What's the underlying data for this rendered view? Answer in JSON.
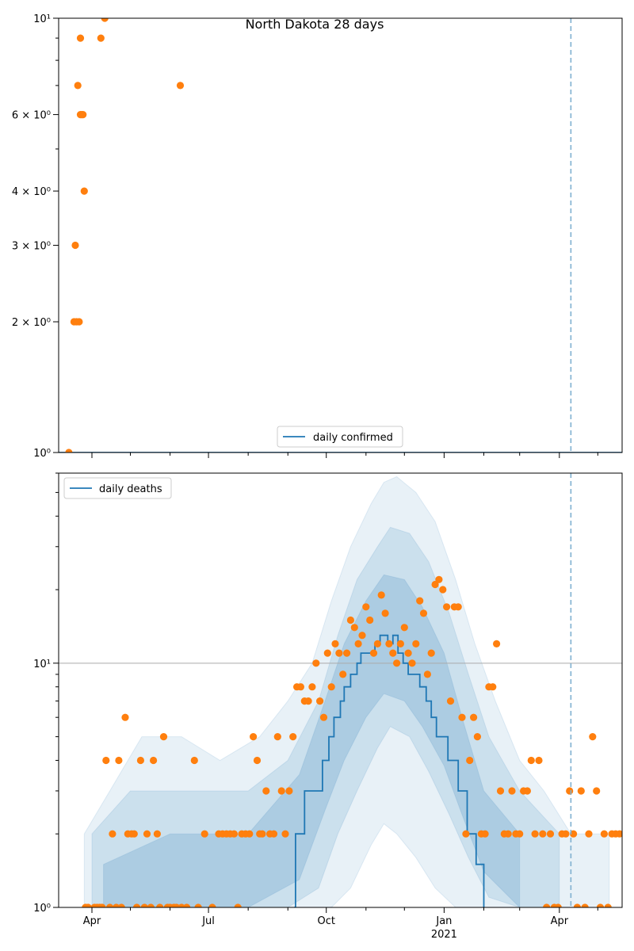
{
  "chart_data": [
    {
      "type": "scatter",
      "title": "North Dakota 28 days",
      "yscale": "log",
      "ylim": [
        1,
        10
      ],
      "xlim": [
        "2020-03-06",
        "2021-05-20"
      ],
      "y_ticks": [
        {
          "value": 1,
          "label": "10^0"
        },
        {
          "value": 2,
          "label": "2×10^0"
        },
        {
          "value": 3,
          "label": "3×10^0"
        },
        {
          "value": 4,
          "label": "4×10^0"
        },
        {
          "value": 6,
          "label": "6×10^0"
        },
        {
          "value": 10,
          "label": "10^1"
        }
      ],
      "y_tick_labels": {
        "1": "10⁰",
        "2": "2 × 10⁰",
        "3": "3 × 10⁰",
        "4": "4 × 10⁰",
        "6": "6 × 10⁰",
        "10": "10¹"
      },
      "legend": {
        "position": "bottom-center",
        "entries": [
          "daily confirmed"
        ]
      },
      "vline_date": "2021-04-10",
      "series": [
        {
          "name": "daily confirmed",
          "kind": "line",
          "color": "#1f77b4",
          "x": [
            "2020-03-06",
            "2021-05-20"
          ],
          "y": [
            1,
            1
          ]
        },
        {
          "kind": "points",
          "color": "#ff7f0e",
          "x": [
            "2020-03-14",
            "2020-03-18",
            "2020-03-19",
            "2020-03-20",
            "2020-03-21",
            "2020-03-22",
            "2020-03-23",
            "2020-03-23",
            "2020-03-24",
            "2020-03-25",
            "2020-03-26",
            "2020-04-08",
            "2020-04-11",
            "2020-06-09"
          ],
          "y": [
            1,
            2,
            3,
            2,
            7,
            2,
            6,
            9,
            6,
            6,
            4,
            9,
            10,
            7
          ]
        }
      ]
    },
    {
      "type": "scatter",
      "yscale": "log",
      "ylim": [
        1,
        60
      ],
      "xlim": [
        "2020-03-06",
        "2021-05-20"
      ],
      "y_tick_labels": {
        "1": "10⁰",
        "10": "10¹"
      },
      "x_ticks": [
        {
          "date": "2020-04-01",
          "label": "Apr"
        },
        {
          "date": "2020-07-01",
          "label": "Jul"
        },
        {
          "date": "2020-10-01",
          "label": "Oct"
        },
        {
          "date": "2021-01-01",
          "label": "Jan",
          "sub": "2021"
        },
        {
          "date": "2021-04-01",
          "label": "Apr"
        }
      ],
      "hline_value": 10,
      "vline_date": "2021-04-10",
      "legend": {
        "position": "top-left",
        "entries": [
          "daily deaths"
        ]
      },
      "series": [
        {
          "name": "daily deaths",
          "kind": "step",
          "color": "#1f77b4",
          "x": [
            "2020-09-06",
            "2020-09-07",
            "2020-09-14",
            "2020-09-20",
            "2020-09-28",
            "2020-10-03",
            "2020-10-07",
            "2020-10-12",
            "2020-10-15",
            "2020-10-20",
            "2020-10-25",
            "2020-10-28",
            "2020-11-03",
            "2020-11-08",
            "2020-11-10",
            "2020-11-12",
            "2020-11-15",
            "2020-11-18",
            "2020-11-22",
            "2020-11-26",
            "2020-11-30",
            "2020-12-04",
            "2020-12-08",
            "2020-12-13",
            "2020-12-18",
            "2020-12-22",
            "2020-12-26",
            "2020-12-30",
            "2021-01-04",
            "2021-01-08",
            "2021-01-12",
            "2021-01-16",
            "2021-01-19",
            "2021-01-23",
            "2021-01-26",
            "2021-02-01"
          ],
          "y": [
            1,
            2,
            3,
            3,
            4,
            5,
            6,
            7,
            8,
            9,
            10,
            11,
            11,
            12,
            12,
            13,
            13,
            12,
            13,
            11,
            10,
            9,
            9,
            8,
            7,
            6,
            5,
            5,
            4,
            4,
            3,
            3,
            2,
            2,
            1.5,
            1
          ]
        },
        {
          "kind": "points",
          "color": "#ff7f0e",
          "x": [
            "2020-03-27",
            "2020-03-29",
            "2020-04-03",
            "2020-04-05",
            "2020-04-07",
            "2020-04-09",
            "2020-04-12",
            "2020-04-15",
            "2020-04-17",
            "2020-04-20",
            "2020-04-22",
            "2020-04-24",
            "2020-04-27",
            "2020-04-29",
            "2020-05-02",
            "2020-05-04",
            "2020-05-06",
            "2020-05-09",
            "2020-05-12",
            "2020-05-14",
            "2020-05-17",
            "2020-05-19",
            "2020-05-22",
            "2020-05-24",
            "2020-05-27",
            "2020-05-30",
            "2020-06-01",
            "2020-06-04",
            "2020-06-06",
            "2020-06-10",
            "2020-06-14",
            "2020-06-20",
            "2020-06-23",
            "2020-06-28",
            "2020-07-04",
            "2020-07-09",
            "2020-07-12",
            "2020-07-15",
            "2020-07-18",
            "2020-07-21",
            "2020-07-24",
            "2020-07-27",
            "2020-07-30",
            "2020-08-02",
            "2020-08-05",
            "2020-08-08",
            "2020-08-10",
            "2020-08-12",
            "2020-08-15",
            "2020-08-18",
            "2020-08-21",
            "2020-08-24",
            "2020-08-27",
            "2020-08-30",
            "2020-09-02",
            "2020-09-05",
            "2020-09-08",
            "2020-09-11",
            "2020-09-14",
            "2020-09-17",
            "2020-09-20",
            "2020-09-23",
            "2020-09-26",
            "2020-09-29",
            "2020-10-02",
            "2020-10-05",
            "2020-10-08",
            "2020-10-11",
            "2020-10-14",
            "2020-10-17",
            "2020-10-20",
            "2020-10-23",
            "2020-10-26",
            "2020-10-29",
            "2020-11-01",
            "2020-11-04",
            "2020-11-07",
            "2020-11-10",
            "2020-11-13",
            "2020-11-16",
            "2020-11-19",
            "2020-11-22",
            "2020-11-25",
            "2020-11-28",
            "2020-12-01",
            "2020-12-04",
            "2020-12-07",
            "2020-12-10",
            "2020-12-13",
            "2020-12-16",
            "2020-12-19",
            "2020-12-22",
            "2020-12-25",
            "2020-12-28",
            "2020-12-31",
            "2021-01-03",
            "2021-01-06",
            "2021-01-09",
            "2021-01-12",
            "2021-01-15",
            "2021-01-18",
            "2021-01-21",
            "2021-01-24",
            "2021-01-27",
            "2021-01-30",
            "2021-02-02",
            "2021-02-05",
            "2021-02-08",
            "2021-02-11",
            "2021-02-14",
            "2021-02-17",
            "2021-02-20",
            "2021-02-23",
            "2021-02-26",
            "2021-03-01",
            "2021-03-04",
            "2021-03-07",
            "2021-03-10",
            "2021-03-13",
            "2021-03-16",
            "2021-03-19",
            "2021-03-22",
            "2021-03-25",
            "2021-03-28",
            "2021-03-31",
            "2021-04-03",
            "2021-04-06",
            "2021-04-09",
            "2021-04-12",
            "2021-04-15",
            "2021-04-18",
            "2021-04-21",
            "2021-04-24",
            "2021-04-27",
            "2021-04-30",
            "2021-05-03",
            "2021-05-06",
            "2021-05-09",
            "2021-05-12",
            "2021-05-15",
            "2021-05-18"
          ],
          "y": [
            1,
            1,
            1,
            1,
            1,
            1,
            4,
            1,
            2,
            1,
            4,
            1,
            6,
            2,
            2,
            2,
            1,
            4,
            1,
            2,
            1,
            4,
            2,
            1,
            5,
            1,
            1,
            1,
            1,
            1,
            1,
            4,
            1,
            2,
            1,
            2,
            2,
            2,
            2,
            2,
            1,
            2,
            2,
            2,
            5,
            4,
            2,
            2,
            3,
            2,
            2,
            5,
            3,
            2,
            3,
            5,
            8,
            8,
            7,
            7,
            8,
            10,
            7,
            6,
            11,
            8,
            12,
            11,
            9,
            11,
            15,
            14,
            12,
            13,
            17,
            15,
            11,
            12,
            19,
            16,
            12,
            11,
            10,
            12,
            14,
            11,
            10,
            12,
            18,
            16,
            9,
            11,
            21,
            22,
            20,
            17,
            7,
            17,
            17,
            6,
            2,
            4,
            6,
            5,
            2,
            2,
            8,
            8,
            12,
            3,
            2,
            2,
            3,
            2,
            2,
            3,
            3,
            4,
            2,
            4,
            2,
            1,
            2,
            1,
            1,
            2,
            2,
            3,
            2,
            1,
            3,
            1,
            2,
            5,
            3,
            1,
            2,
            1,
            2,
            2,
            2
          ]
        },
        {
          "kind": "band",
          "color": "#1f77b4",
          "opacity": 0.1,
          "x": [
            "2020-03-26",
            "2020-04-15",
            "2020-05-10",
            "2020-06-10",
            "2020-07-10",
            "2020-08-10",
            "2020-09-01",
            "2020-09-20",
            "2020-10-05",
            "2020-10-20",
            "2020-11-05",
            "2020-11-15",
            "2020-11-25",
            "2020-12-10",
            "2020-12-25",
            "2021-01-10",
            "2021-01-25",
            "2021-02-10",
            "2021-03-01",
            "2021-03-20",
            "2021-04-10",
            "2021-05-10"
          ],
          "low": [
            1,
            1,
            1,
            1,
            1,
            1,
            1,
            1,
            1,
            1.2,
            1.8,
            2.2,
            2.0,
            1.6,
            1.2,
            1.0,
            1,
            1,
            1,
            1,
            1,
            1
          ],
          "high": [
            2,
            3,
            5,
            5,
            4,
            5,
            7,
            10,
            18,
            30,
            45,
            55,
            58,
            50,
            38,
            22,
            12,
            7,
            4,
            3,
            2,
            2
          ]
        },
        {
          "kind": "band",
          "color": "#1f77b4",
          "opacity": 0.14,
          "x": [
            "2020-04-01",
            "2020-05-01",
            "2020-06-15",
            "2020-08-01",
            "2020-09-01",
            "2020-09-25",
            "2020-10-10",
            "2020-10-25",
            "2020-11-10",
            "2020-11-20",
            "2020-12-05",
            "2020-12-20",
            "2021-01-05",
            "2021-01-20",
            "2021-02-05",
            "2021-03-01",
            "2021-04-01"
          ],
          "low": [
            1,
            1,
            1,
            1,
            1,
            1.2,
            2.0,
            3.0,
            4.5,
            5.5,
            5.0,
            3.6,
            2.4,
            1.6,
            1.1,
            1,
            1
          ],
          "high": [
            2,
            3,
            3,
            3,
            4,
            7,
            13,
            22,
            30,
            36,
            34,
            26,
            16,
            9,
            5,
            3,
            2
          ]
        },
        {
          "kind": "band",
          "color": "#1f77b4",
          "opacity": 0.18,
          "x": [
            "2020-04-10",
            "2020-06-01",
            "2020-08-01",
            "2020-09-10",
            "2020-09-30",
            "2020-10-15",
            "2020-11-01",
            "2020-11-15",
            "2020-12-01",
            "2020-12-15",
            "2021-01-01",
            "2021-01-15",
            "2021-02-01",
            "2021-03-01"
          ],
          "low": [
            1,
            1,
            1,
            1.3,
            2.5,
            4.0,
            6.0,
            7.5,
            7.0,
            5.5,
            3.8,
            2.4,
            1.4,
            1
          ],
          "high": [
            1.5,
            2,
            2,
            3.5,
            7,
            12,
            18,
            23,
            22,
            17,
            11,
            6,
            3,
            2
          ]
        }
      ]
    }
  ]
}
